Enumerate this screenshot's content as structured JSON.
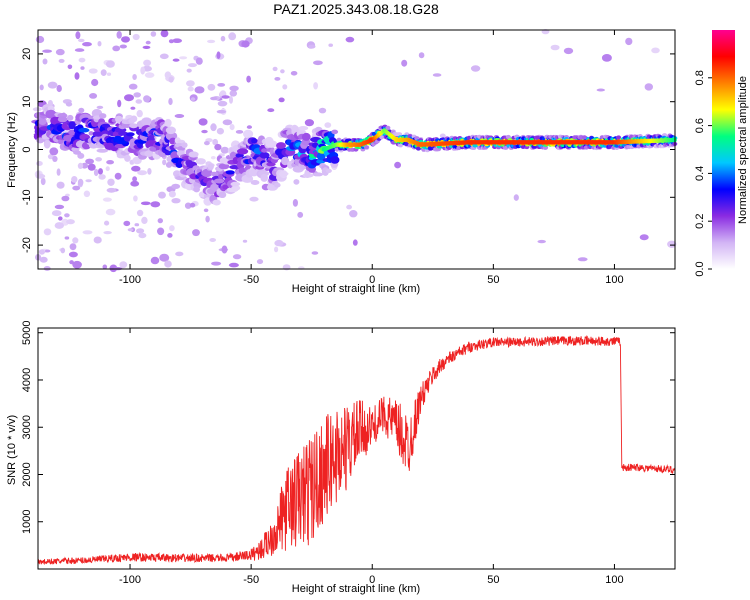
{
  "title": "PAZ1.2025.343.08.18.G28",
  "chart_data": [
    {
      "type": "heatmap",
      "xlabel": "Height of straight line (km)",
      "ylabel": "Frequency (Hz)",
      "xlim": [
        -138,
        125
      ],
      "ylim": [
        -25,
        25
      ],
      "xticks": [
        -100,
        -50,
        0,
        50,
        100
      ],
      "yticks": [
        -20,
        -10,
        0,
        10,
        20
      ],
      "colorbar": {
        "label": "Normalized spectral amplitude",
        "range": [
          0,
          1
        ],
        "ticks": [
          0.0,
          0.2,
          0.4,
          0.6,
          0.8
        ],
        "colormap": [
          "#ffffff",
          "#d2b4f5",
          "#8a2be2",
          "#0000ff",
          "#00c8ff",
          "#00ff80",
          "#ffff00",
          "#ff8000",
          "#ff0000",
          "#ff0090"
        ]
      },
      "ridge": {
        "x": [
          -136,
          -125,
          -115,
          -105,
          -95,
          -88,
          -80,
          -72,
          -65,
          -55,
          -48,
          -40,
          -35,
          -30,
          -25,
          -20,
          -15,
          -10,
          -5,
          0,
          5,
          10,
          15,
          20,
          40,
          60,
          80,
          100,
          125
        ],
        "frequency": [
          5,
          3,
          4,
          3,
          2,
          3,
          -2,
          -5,
          -8,
          -3,
          0,
          -4,
          1,
          0,
          -1,
          0,
          1,
          1,
          1,
          2,
          4,
          2,
          2,
          1,
          1.5,
          1.5,
          1.5,
          1.5,
          2
        ],
        "amplitude": [
          0.3,
          0.35,
          0.35,
          0.35,
          0.3,
          0.35,
          0.3,
          0.25,
          0.25,
          0.3,
          0.35,
          0.3,
          0.35,
          0.4,
          0.45,
          0.55,
          0.6,
          0.75,
          0.8,
          0.85,
          0.6,
          0.7,
          0.75,
          0.8,
          0.85,
          0.85,
          0.85,
          0.85,
          0.55
        ]
      }
    },
    {
      "type": "line",
      "xlabel": "Height of straight line (km)",
      "ylabel": "SNR (10 * v/v)",
      "xlim": [
        -138,
        125
      ],
      "ylim": [
        0,
        5100
      ],
      "xticks": [
        -100,
        -50,
        0,
        50,
        100
      ],
      "yticks": [
        1000,
        2000,
        3000,
        4000,
        5000
      ],
      "color": "#ee2222",
      "envelope": {
        "x": [
          -138,
          -120,
          -100,
          -80,
          -60,
          -50,
          -45,
          -40,
          -35,
          -30,
          -25,
          -20,
          -15,
          -10,
          -5,
          0,
          5,
          10,
          15,
          20,
          25,
          30,
          40,
          50,
          60,
          80,
          100,
          102.5,
          103,
          110,
          125
        ],
        "mean": [
          150,
          180,
          250,
          230,
          230,
          300,
          450,
          800,
          1300,
          1500,
          1700,
          2100,
          2400,
          2600,
          2900,
          3000,
          3300,
          3000,
          2600,
          3600,
          4100,
          4400,
          4700,
          4800,
          4800,
          4830,
          4820,
          4800,
          2150,
          2150,
          2100
        ],
        "noise": [
          60,
          70,
          90,
          90,
          80,
          130,
          250,
          500,
          900,
          1100,
          1200,
          1100,
          1100,
          900,
          700,
          400,
          400,
          600,
          700,
          300,
          200,
          150,
          120,
          100,
          100,
          100,
          100,
          100,
          80,
          80,
          80
        ]
      }
    }
  ]
}
